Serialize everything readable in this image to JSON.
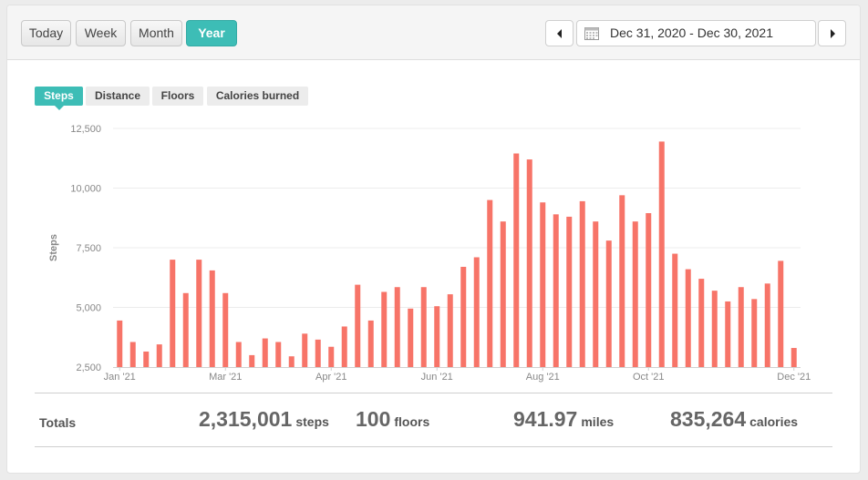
{
  "toolbar": {
    "ranges": [
      {
        "label": "Today",
        "active": false
      },
      {
        "label": "Week",
        "active": false
      },
      {
        "label": "Month",
        "active": false
      },
      {
        "label": "Year",
        "active": true
      }
    ],
    "date_range": "Dec 31, 2020 - Dec 30, 2021"
  },
  "metric_tabs": [
    {
      "label": "Steps",
      "active": true
    },
    {
      "label": "Distance",
      "active": false
    },
    {
      "label": "Floors",
      "active": false
    },
    {
      "label": "Calories burned",
      "active": false
    }
  ],
  "colors": {
    "accent": "#3dbdb6",
    "bar": "#f77468"
  },
  "chart_data": {
    "type": "bar",
    "ylabel": "Steps",
    "xlabel": "",
    "ylim": [
      2500,
      12500
    ],
    "yticks": [
      2500,
      5000,
      7500,
      10000,
      12500
    ],
    "ytick_labels": [
      "2,500",
      "5,000",
      "7,500",
      "10,000",
      "12,500"
    ],
    "xtick_labels": [
      {
        "label": "Jan '21",
        "week_index": 0
      },
      {
        "label": "Mar '21",
        "week_index": 8
      },
      {
        "label": "Apr '21",
        "week_index": 16
      },
      {
        "label": "Jun '21",
        "week_index": 24
      },
      {
        "label": "Aug '21",
        "week_index": 32
      },
      {
        "label": "Oct '21",
        "week_index": 40
      },
      {
        "label": "Dec '21",
        "week_index": 51
      }
    ],
    "grid": true,
    "legend": "none",
    "values": [
      4450,
      3550,
      3150,
      3450,
      7000,
      5600,
      7000,
      6550,
      5600,
      3550,
      3000,
      3700,
      3550,
      2950,
      3900,
      3650,
      3350,
      4200,
      5950,
      4450,
      5650,
      5850,
      4950,
      5850,
      5050,
      5550,
      6700,
      7100,
      9500,
      8600,
      11450,
      11200,
      9400,
      8900,
      8800,
      9450,
      8600,
      7800,
      9700,
      8600,
      8950,
      11950,
      7250,
      6600,
      6200,
      5700,
      5250,
      5850,
      5350,
      6000,
      6950,
      3300
    ]
  },
  "totals": {
    "label": "Totals",
    "steps": {
      "value": "2,315,001",
      "unit": "steps"
    },
    "floors": {
      "value": "100",
      "unit": "floors"
    },
    "miles": {
      "value": "941.97",
      "unit": "miles"
    },
    "calories": {
      "value": "835,264",
      "unit": "calories"
    }
  }
}
